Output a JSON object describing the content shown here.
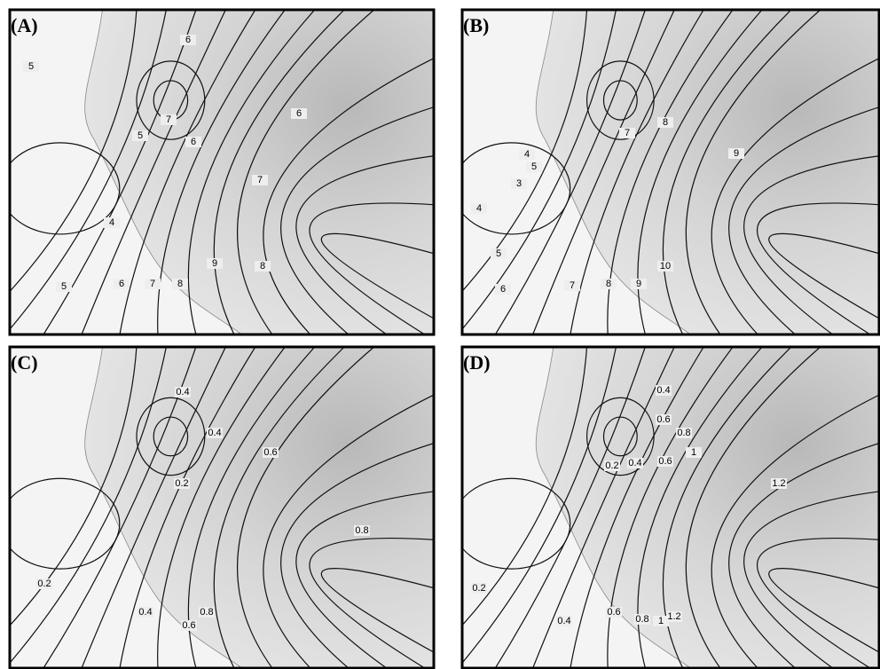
{
  "panels": [
    {
      "label": "(A)",
      "contour_labels": [
        "5",
        "6",
        "6",
        "7",
        "6",
        "5",
        "7",
        "4",
        "9",
        "8",
        "5",
        "6",
        "7",
        "8"
      ]
    },
    {
      "label": "(B)",
      "contour_labels": [
        "4",
        "4",
        "5",
        "3",
        "7",
        "8",
        "9",
        "5",
        "6",
        "7",
        "8",
        "9",
        "10"
      ]
    },
    {
      "label": "(C)",
      "contour_labels": [
        "0.4",
        "0.4",
        "0.6",
        "0.2",
        "0.8",
        "0.2",
        "0.4",
        "0.6",
        "0.8"
      ]
    },
    {
      "label": "(D)",
      "contour_labels": [
        "0.4",
        "0.6",
        "0.8",
        "1",
        "1.2",
        "0.2",
        "0.4",
        "0.6",
        "0.2",
        "0.4",
        "0.6",
        "0.8",
        "1",
        "1.2"
      ]
    }
  ]
}
